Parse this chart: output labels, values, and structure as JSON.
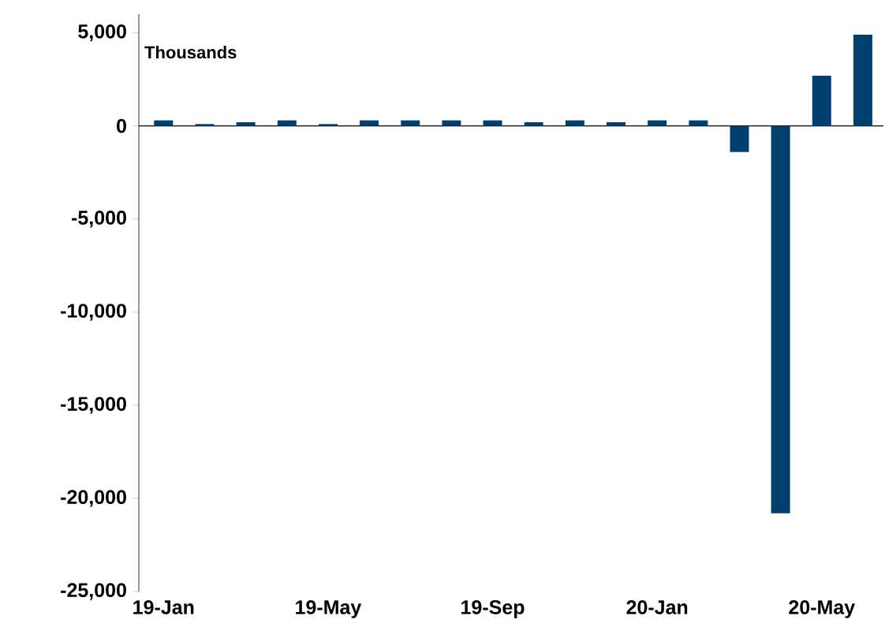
{
  "chart_data": {
    "type": "bar",
    "annotations": [
      "Thousands"
    ],
    "categories": [
      "19-Jan",
      null,
      null,
      null,
      "19-May",
      null,
      null,
      null,
      "19-Sep",
      null,
      null,
      null,
      "20-Jan",
      null,
      null,
      null,
      "20-May",
      null
    ],
    "values": [
      300,
      100,
      200,
      300,
      100,
      300,
      300,
      300,
      300,
      200,
      300,
      200,
      300,
      300,
      -1400,
      -20800,
      2700,
      4900
    ],
    "color": "#003f6e",
    "ylim": [
      -25000,
      6000
    ],
    "yticks": [
      {
        "value": -25000,
        "label": "-25,000"
      },
      {
        "value": -20000,
        "label": "-20,000"
      },
      {
        "value": -15000,
        "label": "-15,000"
      },
      {
        "value": -10000,
        "label": "-10,000"
      },
      {
        "value": -5000,
        "label": "-5,000"
      },
      0,
      {
        "value": 5000,
        "label": "5,000"
      }
    ]
  }
}
